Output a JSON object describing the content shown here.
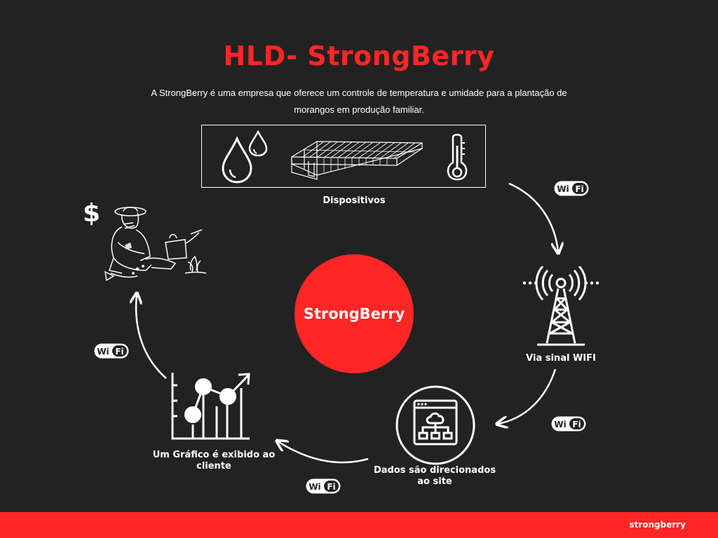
{
  "header": {
    "title": "HLD- StrongBerry",
    "subtitle": "A StrongBerry é uma empresa que oferece um controle de temperatura e umidade para a plantação de morangos em produção familiar."
  },
  "nodes": {
    "devices_label": "Dispositivos",
    "wifi_signal_label": "Via sinal WIFI",
    "data_label": "Dados são direcionados ao site",
    "graph_label": "Um Gráfico é exibido ao cliente",
    "center_label": "StrongBerry",
    "dollar_symbol": "$"
  },
  "wifi_badge": {
    "left": "Wi",
    "right": "Fi"
  },
  "footer": {
    "brand": "strongberry"
  },
  "icons": [
    "water-drops-icon",
    "greenhouse-icon",
    "thermometer-icon",
    "radio-tower-icon",
    "website-network-icon",
    "line-chart-icon",
    "farmer-icon"
  ],
  "colors": {
    "background": "#222222",
    "accent": "#ff2626",
    "text": "#ffffff"
  }
}
